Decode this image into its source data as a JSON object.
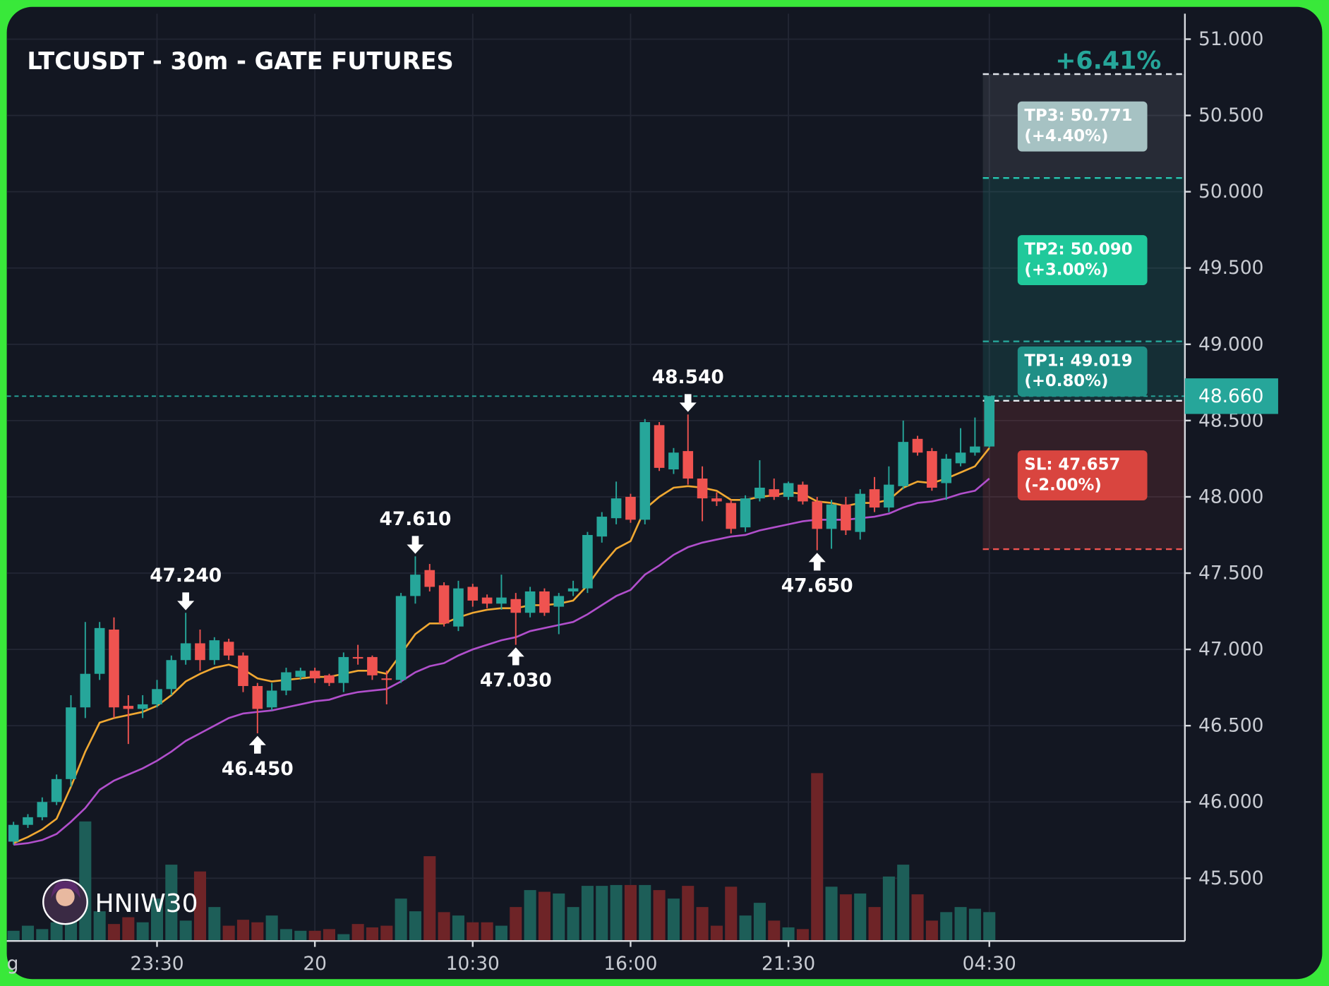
{
  "chart_data": {
    "type": "candlestick",
    "title": "LTCUSDT - 30m - GATE FUTURES",
    "watermark": "HNIW30",
    "categories": [
      "g",
      null,
      null,
      null,
      null,
      null,
      null,
      null,
      null,
      null,
      null,
      "23:30",
      null,
      null,
      null,
      null,
      null,
      null,
      null,
      null,
      null,
      null,
      "20",
      null,
      null,
      null,
      null,
      null,
      null,
      null,
      null,
      null,
      null,
      "10:30",
      null,
      null,
      null,
      null,
      null,
      null,
      null,
      null,
      null,
      null,
      "16:00",
      null,
      null,
      null,
      null,
      null,
      null,
      null,
      null,
      null,
      null,
      "21:30",
      null,
      null,
      null,
      null,
      null,
      null,
      null,
      null,
      null,
      null,
      null,
      null,
      null,
      "04:30"
    ],
    "open": [
      null,
      45.74,
      45.85,
      45.9,
      46.0,
      46.15,
      46.62,
      46.84,
      47.13,
      46.63,
      46.61,
      46.64,
      46.74,
      46.93,
      47.04,
      46.93,
      47.05,
      46.96,
      46.76,
      46.62,
      46.73,
      46.82,
      46.86,
      46.83,
      46.78,
      46.95,
      46.95,
      46.81,
      46.8,
      47.35,
      47.52,
      47.42,
      47.15,
      47.41,
      47.34,
      47.3,
      47.33,
      47.24,
      47.38,
      47.28,
      47.38,
      47.4,
      47.74,
      47.86,
      48.0,
      47.85,
      48.47,
      48.18,
      48.3,
      48.12,
      47.99,
      47.96,
      47.8,
      47.99,
      48.05,
      48.0,
      48.08,
      47.97,
      47.79,
      47.95,
      47.77,
      48.05,
      47.93,
      48.07,
      48.38,
      48.3,
      48.09,
      48.22,
      48.29,
      48.33
    ],
    "high": [
      null,
      45.87,
      45.92,
      46.03,
      46.18,
      46.7,
      47.18,
      47.18,
      47.21,
      46.7,
      46.7,
      46.8,
      46.96,
      47.24,
      47.13,
      47.08,
      47.07,
      46.98,
      46.78,
      46.78,
      46.88,
      46.88,
      46.88,
      46.84,
      46.98,
      47.03,
      46.96,
      46.86,
      47.37,
      47.61,
      47.56,
      47.44,
      47.45,
      47.43,
      47.36,
      47.49,
      47.37,
      47.41,
      47.4,
      47.37,
      47.45,
      47.77,
      47.9,
      48.1,
      48.02,
      48.51,
      48.49,
      48.32,
      48.54,
      48.2,
      48.03,
      47.98,
      48.01,
      48.24,
      48.12,
      48.1,
      48.1,
      48.0,
      47.98,
      48.0,
      48.05,
      48.13,
      48.2,
      48.5,
      48.4,
      48.32,
      48.28,
      48.45,
      48.52,
      48.66
    ],
    "low": [
      null,
      45.72,
      45.83,
      45.88,
      45.98,
      46.1,
      46.55,
      46.8,
      46.55,
      46.38,
      46.55,
      46.62,
      46.7,
      46.9,
      46.86,
      46.9,
      46.93,
      46.72,
      46.45,
      46.6,
      46.7,
      46.8,
      46.78,
      46.76,
      46.72,
      46.9,
      46.8,
      46.64,
      46.78,
      47.3,
      47.38,
      47.15,
      47.12,
      47.28,
      47.27,
      47.26,
      47.03,
      47.21,
      47.22,
      47.1,
      47.35,
      47.37,
      47.7,
      47.82,
      47.83,
      47.82,
      48.17,
      48.15,
      48.08,
      47.84,
      47.94,
      47.76,
      47.77,
      47.97,
      47.98,
      47.98,
      47.95,
      47.65,
      47.66,
      47.75,
      47.72,
      47.9,
      47.9,
      48.05,
      48.27,
      48.04,
      47.98,
      48.2,
      48.27,
      48.32
    ],
    "close": [
      null,
      45.85,
      45.9,
      46.0,
      46.15,
      46.62,
      46.84,
      47.14,
      46.62,
      46.61,
      46.64,
      46.74,
      46.93,
      47.04,
      46.93,
      47.06,
      46.96,
      46.76,
      46.61,
      46.73,
      46.85,
      46.86,
      46.81,
      46.78,
      46.95,
      46.94,
      46.83,
      46.8,
      47.35,
      47.49,
      47.41,
      47.17,
      47.4,
      47.32,
      47.3,
      47.34,
      47.24,
      47.38,
      47.24,
      47.35,
      47.4,
      47.75,
      47.87,
      47.99,
      47.85,
      48.49,
      48.19,
      48.29,
      48.12,
      47.99,
      47.97,
      47.79,
      47.99,
      48.06,
      48.0,
      48.09,
      47.97,
      47.79,
      47.95,
      47.78,
      48.02,
      47.93,
      48.08,
      48.36,
      48.29,
      48.06,
      48.25,
      48.29,
      48.33,
      48.66
    ],
    "volume": [
      null,
      12,
      18,
      14,
      22,
      35,
      141,
      35,
      20,
      28,
      22,
      50,
      90,
      24,
      82,
      40,
      18,
      25,
      22,
      30,
      14,
      12,
      12,
      14,
      8,
      20,
      16,
      18,
      50,
      35,
      100,
      34,
      30,
      22,
      22,
      18,
      40,
      60,
      58,
      56,
      40,
      65,
      65,
      66,
      66,
      66,
      60,
      50,
      65,
      40,
      18,
      64,
      30,
      45,
      24,
      16,
      14,
      198,
      64,
      55,
      56,
      40,
      76,
      90,
      55,
      24,
      34,
      40,
      38,
      34
    ],
    "up_color": "#26a69a",
    "down_color": "#ef5350",
    "up_volume_color": "#1d5e58",
    "down_volume_color": "#6e2427",
    "ma": [
      {
        "color": "#f0a832",
        "values": [
          null,
          45.73,
          45.77,
          45.82,
          45.89,
          46.1,
          46.33,
          46.52,
          46.55,
          46.57,
          46.59,
          46.63,
          46.7,
          46.79,
          46.84,
          46.88,
          46.9,
          46.87,
          46.81,
          46.79,
          46.8,
          46.81,
          46.82,
          46.82,
          46.84,
          46.86,
          46.86,
          46.84,
          46.97,
          47.1,
          47.17,
          47.17,
          47.21,
          47.24,
          47.26,
          47.27,
          47.27,
          47.29,
          47.29,
          47.3,
          47.32,
          47.42,
          47.55,
          47.66,
          47.71,
          47.92,
          48.0,
          48.06,
          48.07,
          48.06,
          48.04,
          47.98,
          47.98,
          48.0,
          48.01,
          48.03,
          48.02,
          47.97,
          47.96,
          47.94,
          47.96,
          47.96,
          47.98,
          48.06,
          48.1,
          48.09,
          48.12,
          48.16,
          48.2,
          48.32
        ]
      },
      {
        "color": "#b14fcc",
        "values": [
          null,
          45.72,
          45.73,
          45.75,
          45.79,
          45.87,
          45.96,
          46.08,
          46.14,
          46.18,
          46.22,
          46.27,
          46.33,
          46.4,
          46.45,
          46.5,
          46.55,
          46.58,
          46.59,
          46.6,
          46.62,
          46.64,
          46.66,
          46.67,
          46.7,
          46.72,
          46.73,
          46.74,
          46.79,
          46.85,
          46.89,
          46.91,
          46.96,
          47.0,
          47.03,
          47.06,
          47.08,
          47.12,
          47.14,
          47.16,
          47.18,
          47.23,
          47.29,
          47.35,
          47.39,
          47.49,
          47.55,
          47.62,
          47.67,
          47.7,
          47.72,
          47.74,
          47.75,
          47.78,
          47.8,
          47.82,
          47.84,
          47.85,
          47.85,
          47.85,
          47.86,
          47.87,
          47.89,
          47.93,
          47.96,
          47.97,
          47.99,
          48.02,
          48.04,
          48.12
        ]
      }
    ],
    "xlim": [
      0.53,
      82.63
    ],
    "ylim": [
      45.089,
      51.167
    ],
    "yticks": [
      {
        "value": 45.5,
        "label": "45.500"
      },
      {
        "value": 46,
        "label": "46.000"
      },
      {
        "value": 46.5,
        "label": "46.500"
      },
      {
        "value": 47,
        "label": "47.000"
      },
      {
        "value": 47.5,
        "label": "47.500"
      },
      {
        "value": 48,
        "label": "48.000"
      },
      {
        "value": 48.5,
        "label": "48.500"
      },
      {
        "value": 49,
        "label": "49.000"
      },
      {
        "value": 49.5,
        "label": "49.500"
      },
      {
        "value": 50,
        "label": "50.000"
      },
      {
        "value": 50.5,
        "label": "50.500"
      },
      {
        "value": 51,
        "label": "51.000"
      }
    ],
    "grid": true,
    "annotations": [
      {
        "index": 13,
        "value": 47.24,
        "label": "47.240",
        "position": "above"
      },
      {
        "index": 18,
        "value": 46.45,
        "label": "46.450",
        "position": "below"
      },
      {
        "index": 29,
        "value": 47.61,
        "label": "47.610",
        "position": "above"
      },
      {
        "index": 36,
        "value": 47.03,
        "label": "47.030",
        "position": "below"
      },
      {
        "index": 48,
        "value": 48.54,
        "label": "48.540",
        "position": "above"
      },
      {
        "index": 57,
        "value": 47.65,
        "label": "47.650",
        "position": "below"
      }
    ],
    "last_price": {
      "value": 48.66,
      "label": "48.660",
      "color": "#26a69a"
    },
    "position": {
      "start": 69,
      "entry": 48.63,
      "change": "+6.41%",
      "change_color": "#26a69a",
      "targets": [
        {
          "value": 49.019,
          "label": "TP1: 49.019",
          "pct": "(+0.80%)",
          "color": "#1f8f86",
          "line_color": "#26a69a",
          "zone_color": "rgba(38,166,154,0.16)"
        },
        {
          "value": 50.09,
          "label": "TP2: 50.090",
          "pct": "(+3.00%)",
          "color": "#20c99b",
          "line_color": "#26c6b0",
          "zone_color": "rgba(38,166,154,0.16)"
        },
        {
          "value": 50.771,
          "label": "TP3: 50.771",
          "pct": "(+4.40%)",
          "color": "#a6c2c3",
          "line_color": "#e0e4ea",
          "zone_color": "rgba(160,170,180,0.14)"
        }
      ],
      "stop": {
        "value": 47.657,
        "label": "SL: 47.657",
        "pct": "(-2.00%)",
        "color": "#d9453f",
        "line_color": "#ef5350",
        "zone_color": "rgba(239,83,80,0.14)"
      }
    }
  }
}
